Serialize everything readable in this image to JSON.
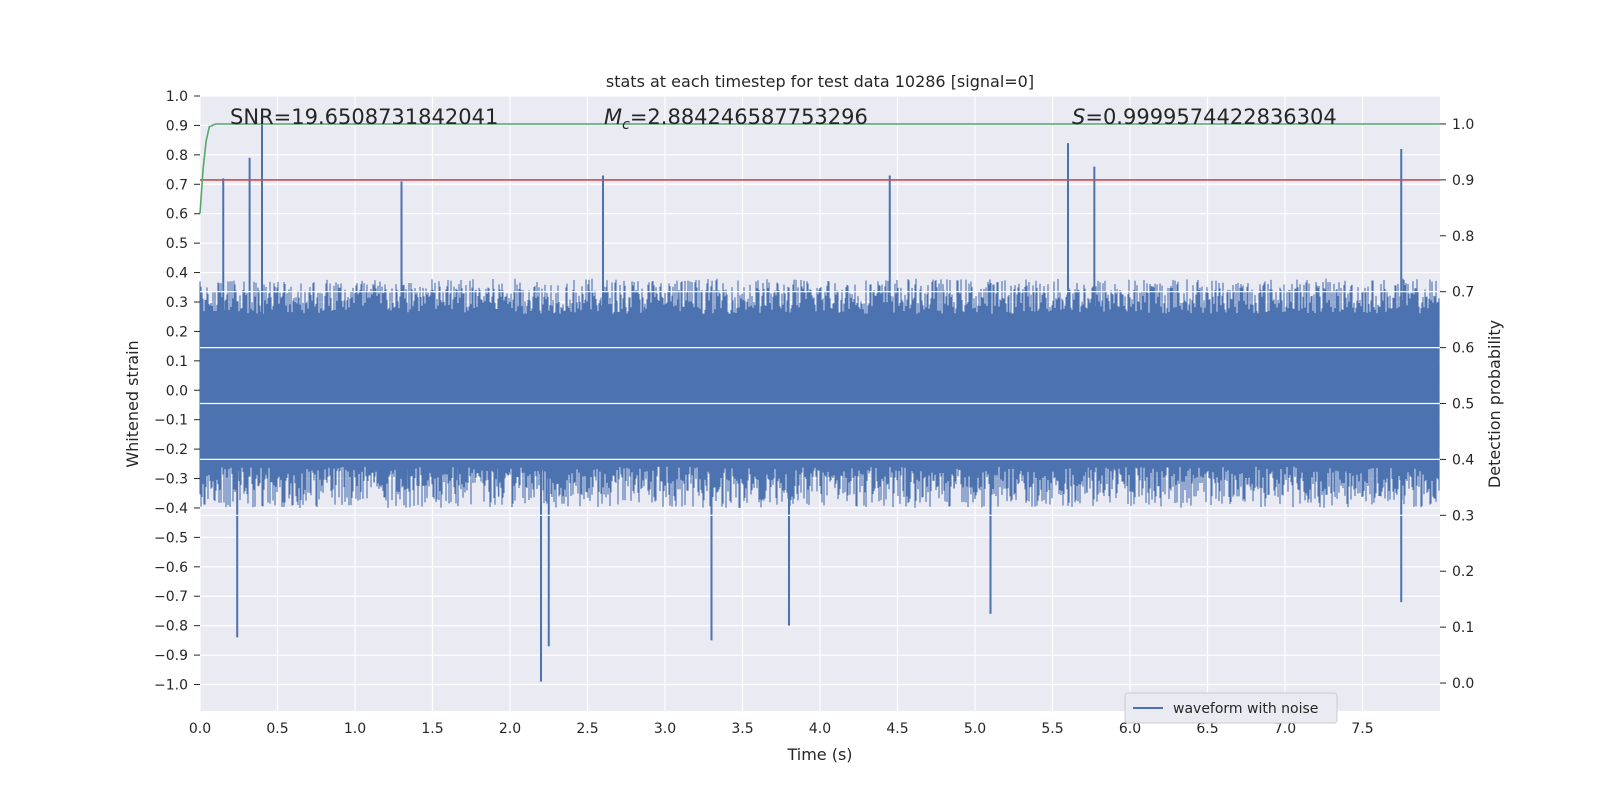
{
  "chart_data": {
    "type": "line",
    "title": "stats at each timestep for test data 10286 [signal=0]",
    "xlabel": "Time (s)",
    "ylabel_left": "Whitened strain",
    "ylabel_right": "Detection probability",
    "xlim": [
      0.0,
      8.0
    ],
    "ylim_left": [
      -1.09,
      1.0
    ],
    "ylim_right": [
      -0.05,
      1.05
    ],
    "x_ticks": [
      "0.0",
      "0.5",
      "1.0",
      "1.5",
      "2.0",
      "2.5",
      "3.0",
      "3.5",
      "4.0",
      "4.5",
      "5.0",
      "5.5",
      "6.0",
      "6.5",
      "7.0",
      "7.5"
    ],
    "y_left_ticks": [
      "1.0",
      "0.9",
      "0.8",
      "0.7",
      "0.6",
      "0.5",
      "0.4",
      "0.3",
      "0.2",
      "0.1",
      "0.0",
      "−0.1",
      "−0.2",
      "−0.3",
      "−0.4",
      "−0.5",
      "−0.6",
      "−0.7",
      "−0.8",
      "−0.9",
      "−1.0"
    ],
    "y_right_ticks": [
      "1.0",
      "0.9",
      "0.8",
      "0.7",
      "0.6",
      "0.5",
      "0.4",
      "0.3",
      "0.2",
      "0.1",
      "0.0"
    ],
    "annotations": {
      "snr": "SNR=19.6508731842041",
      "mc_symbol": "M",
      "mc_sub": "c",
      "mc_value": "=2.884246587753296",
      "s_symbol": "S",
      "s_value": "=0.9999574422836304"
    },
    "series": [
      {
        "name": "waveform with noise",
        "axis": "left",
        "color": "#4c72b0",
        "description_noise_envelope": [
          0.45,
          -0.45
        ],
        "peaks_positive": [
          {
            "x": 0.15,
            "y": 0.72
          },
          {
            "x": 0.32,
            "y": 0.79
          },
          {
            "x": 0.4,
            "y": 0.91
          },
          {
            "x": 1.3,
            "y": 0.71
          },
          {
            "x": 2.6,
            "y": 0.73
          },
          {
            "x": 4.45,
            "y": 0.73
          },
          {
            "x": 5.6,
            "y": 0.84
          },
          {
            "x": 5.77,
            "y": 0.76
          },
          {
            "x": 7.75,
            "y": 0.82
          }
        ],
        "peaks_negative": [
          {
            "x": 0.24,
            "y": -0.84
          },
          {
            "x": 2.2,
            "y": -0.99
          },
          {
            "x": 2.25,
            "y": -0.87
          },
          {
            "x": 3.3,
            "y": -0.85
          },
          {
            "x": 3.8,
            "y": -0.8
          },
          {
            "x": 5.1,
            "y": -0.76
          },
          {
            "x": 7.75,
            "y": -0.72
          }
        ]
      },
      {
        "name": "detection probability",
        "axis": "right",
        "color": "#55a868",
        "x": [
          0.0,
          0.02,
          0.04,
          0.06,
          0.1,
          0.2,
          8.0
        ],
        "y": [
          0.84,
          0.92,
          0.97,
          0.995,
          1.0,
          1.0,
          1.0
        ]
      },
      {
        "name": "threshold",
        "axis": "right",
        "color": "#c44e52",
        "x": [
          0.0,
          8.0
        ],
        "y": [
          0.9,
          0.9
        ]
      }
    ],
    "legend": {
      "position": "lower-right",
      "entries": [
        {
          "label": "waveform with noise",
          "color": "#4c72b0"
        }
      ]
    },
    "colors": {
      "background": "#eaeaf2",
      "grid": "#ffffff",
      "waveform": "#4c72b0",
      "probability": "#55a868",
      "threshold": "#c44e52"
    }
  }
}
